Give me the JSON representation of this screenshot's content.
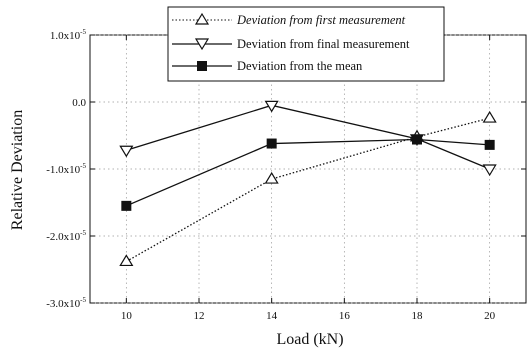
{
  "chart_data": {
    "type": "line",
    "xlabel": "Load (kN)",
    "ylabel": "Relative Deviation",
    "x": [
      10,
      14,
      18,
      20
    ],
    "xlim": [
      9,
      21
    ],
    "ylim": [
      -3e-05,
      1e-05
    ],
    "x_ticks": [
      10,
      12,
      14,
      16,
      18,
      20
    ],
    "x_tick_labels": [
      "10",
      "12",
      "14",
      "16",
      "18",
      "20"
    ],
    "y_ticks": [
      1e-05,
      0,
      -1e-05,
      -2e-05,
      -3e-05
    ],
    "y_tick_labels": [
      {
        "mantissa": "1.0x10",
        "exp": "-5"
      },
      {
        "mantissa": "0.0",
        "exp": ""
      },
      {
        "mantissa": "-1.0x10",
        "exp": "-5"
      },
      {
        "mantissa": "-2.0x10",
        "exp": "-5"
      },
      {
        "mantissa": "-3.0x10",
        "exp": "-5"
      }
    ],
    "grid": true,
    "legend_position": "top-center",
    "series": [
      {
        "name": "Deviation from first measurement",
        "marker": "triangle-up-open",
        "line": "dotted",
        "values": [
          -2.38e-05,
          -1.15e-05,
          -5.2e-06,
          -2.4e-06
        ]
      },
      {
        "name": "Deviation from final measurement",
        "marker": "triangle-down-open",
        "line": "solid",
        "values": [
          -7.2e-06,
          -5e-07,
          -5.5e-06,
          -1e-05
        ]
      },
      {
        "name": "Deviation from the mean",
        "marker": "square-filled",
        "line": "solid",
        "values": [
          -1.55e-05,
          -6.2e-06,
          -5.6e-06,
          -6.4e-06
        ]
      }
    ]
  }
}
